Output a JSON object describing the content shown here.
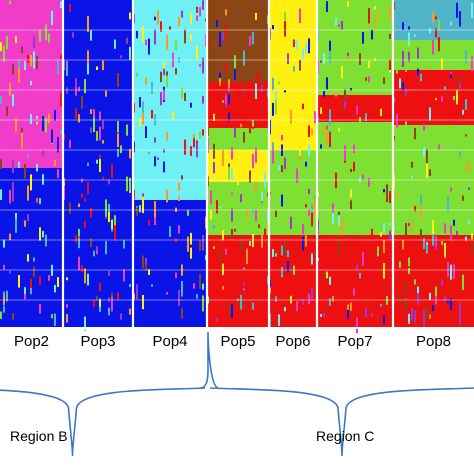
{
  "chart_data": {
    "type": "structure_barplot",
    "populations": [
      {
        "name": "Pop2",
        "dominant_clusters": [
          "magenta",
          "blue"
        ]
      },
      {
        "name": "Pop3",
        "dominant_clusters": [
          "blue"
        ]
      },
      {
        "name": "Pop4",
        "dominant_clusters": [
          "cyan",
          "blue"
        ]
      },
      {
        "name": "Pop5",
        "dominant_clusters": [
          "brown",
          "green",
          "red"
        ]
      },
      {
        "name": "Pop6",
        "dominant_clusters": [
          "yellow",
          "green",
          "red"
        ]
      },
      {
        "name": "Pop7",
        "dominant_clusters": [
          "green",
          "red"
        ]
      },
      {
        "name": "Pop8",
        "dominant_clusters": [
          "teal",
          "green",
          "red"
        ]
      }
    ],
    "regions": [
      {
        "label": "Region B",
        "populations": [
          "Pop2",
          "Pop3",
          "Pop4"
        ]
      },
      {
        "label": "Region C",
        "populations": [
          "Pop5",
          "Pop6",
          "Pop7",
          "Pop8"
        ]
      }
    ],
    "cluster_colors": {
      "magenta": "#f03cc8",
      "blue": "#0a14e6",
      "cyan": "#6ef0f5",
      "brown": "#8c4616",
      "green": "#7ee032",
      "red": "#ee1010",
      "yellow": "#fff010",
      "teal": "#50b4c8",
      "orange": "#ff9a1e",
      "purple": "#9a3cc8"
    },
    "brace_color": "#3c78c8"
  }
}
